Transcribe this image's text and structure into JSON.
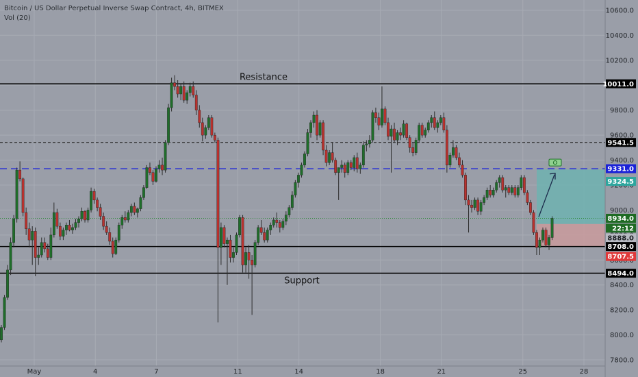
{
  "chart_data": {
    "type": "candlestick",
    "legend": {
      "line1": "Bitcoin / US Dollar Perpetual Inverse Swap Contract, 4h, BITMEX",
      "line2": "Vol (20)"
    },
    "y_range": [
      7750,
      10700
    ],
    "y_ticks": [
      {
        "value": 7800,
        "label": "7800.0"
      },
      {
        "value": 8000,
        "label": "8000.0"
      },
      {
        "value": 8200,
        "label": "8200.0"
      },
      {
        "value": 8400,
        "label": "8400.0"
      },
      {
        "value": 8600,
        "label": "8600.0"
      },
      {
        "value": 8800,
        "label": "8800.0"
      },
      {
        "value": 9000,
        "label": "9000.0"
      },
      {
        "value": 9200,
        "label": "9200.0"
      },
      {
        "value": 9400,
        "label": "9400.0"
      },
      {
        "value": 9600,
        "label": "9600.0"
      },
      {
        "value": 9800,
        "label": "9800.0"
      },
      {
        "value": 10000,
        "label": "10000.0"
      },
      {
        "value": 10200,
        "label": "10200.0"
      },
      {
        "value": 10400,
        "label": "10400.0"
      },
      {
        "value": 10600,
        "label": "10600.0"
      }
    ],
    "x_ticks": [
      {
        "label": "May",
        "day": 1
      },
      {
        "label": "4",
        "day": 4
      },
      {
        "label": "7",
        "day": 7
      },
      {
        "label": "11",
        "day": 11
      },
      {
        "label": "14",
        "day": 14
      },
      {
        "label": "18",
        "day": 18
      },
      {
        "label": "21",
        "day": 21
      },
      {
        "label": "25",
        "day": 25
      },
      {
        "label": "28",
        "day": 28
      }
    ],
    "horizontal_levels": [
      {
        "name": "resistance",
        "value": 10011.0,
        "label": "10011.0",
        "style": "solid",
        "color": "#000000",
        "annotation": "Resistance"
      },
      {
        "name": "level-9541",
        "value": 9541.5,
        "label": "9541.5",
        "style": "dashed",
        "color": "#333333"
      },
      {
        "name": "level-9331",
        "value": 9331.0,
        "label": "9331.0",
        "style": "dashed",
        "color": "#1a22d8"
      },
      {
        "name": "level-8708",
        "value": 8708.0,
        "label": "8708.0",
        "style": "solid",
        "color": "#000000"
      },
      {
        "name": "support",
        "value": 8494.0,
        "label": "8494.0",
        "style": "solid",
        "color": "#000000",
        "annotation": "Support"
      }
    ],
    "position": {
      "entry": 8888.0,
      "target": 9324.5,
      "stop": 8707.5,
      "current": 8934.0,
      "countdown": "22:12",
      "start_day": 25.1,
      "end_day": 26.0,
      "profit_color": "#6fb2b0",
      "loss_color": "#c99a9c"
    },
    "price_badges": [
      {
        "value": 10011.0,
        "label": "10011.0",
        "bg": "#000000",
        "fg": "#ffffff"
      },
      {
        "value": 9541.5,
        "label": "9541.5",
        "bg": "#000000",
        "fg": "#ffffff"
      },
      {
        "value": 9331.0,
        "label": "9331.0",
        "bg": "#1a22d8",
        "fg": "#ffffff"
      },
      {
        "value": 9230.0,
        "label": "9324.5",
        "bg": "#2ea69e",
        "fg": "#ffffff"
      },
      {
        "value": 8934.0,
        "label": "8934.0",
        "bg": "#1f6b24",
        "fg": "#ffffff"
      },
      {
        "value": 8855.0,
        "label": "22:12",
        "bg": "#1f6b24",
        "fg": "#ffffff"
      },
      {
        "value": 8776.0,
        "label": "8888.0",
        "bg": "#b7bac2",
        "fg": "#1f2226"
      },
      {
        "value": 8708.0,
        "label": "8708.0",
        "bg": "#000000",
        "fg": "#ffffff"
      },
      {
        "value": 8628.0,
        "label": "8707.5",
        "bg": "#e0393a",
        "fg": "#ffffff"
      },
      {
        "value": 8494.0,
        "label": "8494.0",
        "bg": "#000000",
        "fg": "#ffffff"
      }
    ],
    "colors": {
      "background": "#9a9ea8",
      "up": "#1f6e2a",
      "down": "#b9322f",
      "wick": "#2c2c2c",
      "dotted_current": "#2e8a3a"
    },
    "candles_ohlc_4h": [
      [
        7960,
        8080,
        7940,
        8060
      ],
      [
        8060,
        8320,
        8040,
        8300
      ],
      [
        8300,
        8560,
        8280,
        8520
      ],
      [
        8520,
        8780,
        8480,
        8740
      ],
      [
        8740,
        8960,
        8700,
        8930
      ],
      [
        8930,
        9340,
        8900,
        9320
      ],
      [
        9320,
        9390,
        9230,
        9250
      ],
      [
        9250,
        9260,
        8950,
        8980
      ],
      [
        8980,
        9020,
        8800,
        8850
      ],
      [
        8850,
        8900,
        8700,
        8760
      ],
      [
        8760,
        8870,
        8560,
        8830
      ],
      [
        8830,
        8860,
        8470,
        8620
      ],
      [
        8620,
        8700,
        8560,
        8640
      ],
      [
        8640,
        8780,
        8620,
        8740
      ],
      [
        8740,
        8780,
        8660,
        8690
      ],
      [
        8690,
        8730,
        8600,
        8620
      ],
      [
        8620,
        8860,
        8600,
        8800
      ],
      [
        8800,
        9060,
        8780,
        8980
      ],
      [
        8980,
        9010,
        8850,
        8870
      ],
      [
        8870,
        8900,
        8760,
        8790
      ],
      [
        8790,
        8860,
        8760,
        8840
      ],
      [
        8840,
        8900,
        8800,
        8880
      ],
      [
        8880,
        8920,
        8830,
        8840
      ],
      [
        8840,
        8890,
        8810,
        8860
      ],
      [
        8860,
        8930,
        8840,
        8900
      ],
      [
        8900,
        8950,
        8860,
        8930
      ],
      [
        8930,
        9020,
        8910,
        8990
      ],
      [
        8990,
        9000,
        8900,
        8920
      ],
      [
        8920,
        9020,
        8900,
        9000
      ],
      [
        9000,
        9180,
        8980,
        9150
      ],
      [
        9150,
        9170,
        9050,
        9080
      ],
      [
        9080,
        9100,
        8990,
        9020
      ],
      [
        9020,
        9050,
        8920,
        8950
      ],
      [
        8950,
        8980,
        8840,
        8870
      ],
      [
        8870,
        8910,
        8800,
        8820
      ],
      [
        8820,
        8860,
        8720,
        8750
      ],
      [
        8750,
        8780,
        8620,
        8650
      ],
      [
        8650,
        8780,
        8640,
        8760
      ],
      [
        8760,
        8900,
        8740,
        8880
      ],
      [
        8880,
        8960,
        8850,
        8940
      ],
      [
        8940,
        8990,
        8900,
        8920
      ],
      [
        8920,
        9000,
        8900,
        8980
      ],
      [
        8980,
        9050,
        8950,
        9030
      ],
      [
        9030,
        9060,
        8960,
        8980
      ],
      [
        8980,
        9020,
        8940,
        9010
      ],
      [
        9010,
        9120,
        8990,
        9100
      ],
      [
        9100,
        9200,
        9080,
        9180
      ],
      [
        9180,
        9360,
        9170,
        9340
      ],
      [
        9340,
        9380,
        9280,
        9300
      ],
      [
        9300,
        9320,
        9200,
        9230
      ],
      [
        9230,
        9350,
        9220,
        9330
      ],
      [
        9330,
        9400,
        9300,
        9360
      ],
      [
        9360,
        9420,
        9280,
        9320
      ],
      [
        9320,
        9560,
        9300,
        9540
      ],
      [
        9540,
        9850,
        9520,
        9820
      ],
      [
        9820,
        10060,
        9790,
        10020
      ],
      [
        10020,
        10080,
        9960,
        9990
      ],
      [
        9990,
        10040,
        9900,
        9930
      ],
      [
        9930,
        10010,
        9880,
        9990
      ],
      [
        9990,
        10030,
        9860,
        9880
      ],
      [
        9880,
        9960,
        9850,
        9940
      ],
      [
        9940,
        10020,
        9910,
        9990
      ],
      [
        9990,
        10030,
        9900,
        9920
      ],
      [
        9920,
        9960,
        9760,
        9800
      ],
      [
        9800,
        9840,
        9660,
        9700
      ],
      [
        9700,
        9740,
        9550,
        9600
      ],
      [
        9600,
        9680,
        9570,
        9660
      ],
      [
        9660,
        9760,
        9640,
        9740
      ],
      [
        9740,
        9760,
        9580,
        9600
      ],
      [
        9600,
        9620,
        9540,
        9560
      ],
      [
        9560,
        9580,
        8100,
        8700
      ],
      [
        8700,
        8900,
        8560,
        8860
      ],
      [
        8860,
        8880,
        8700,
        8730
      ],
      [
        8730,
        8780,
        8400,
        8760
      ],
      [
        8760,
        8800,
        8580,
        8620
      ],
      [
        8620,
        8700,
        8580,
        8660
      ],
      [
        8660,
        8820,
        8640,
        8800
      ],
      [
        8800,
        8960,
        8780,
        8940
      ],
      [
        8940,
        8960,
        8500,
        8560
      ],
      [
        8560,
        8700,
        8500,
        8660
      ],
      [
        8660,
        8720,
        8450,
        8600
      ],
      [
        8600,
        8640,
        8160,
        8560
      ],
      [
        8560,
        8760,
        8540,
        8740
      ],
      [
        8740,
        8880,
        8720,
        8860
      ],
      [
        8860,
        8920,
        8800,
        8820
      ],
      [
        8820,
        8860,
        8740,
        8760
      ],
      [
        8760,
        8860,
        8740,
        8840
      ],
      [
        8840,
        8900,
        8800,
        8880
      ],
      [
        8880,
        8940,
        8860,
        8920
      ],
      [
        8920,
        8980,
        8860,
        8900
      ],
      [
        8900,
        8920,
        8820,
        8860
      ],
      [
        8860,
        8930,
        8840,
        8910
      ],
      [
        8910,
        8990,
        8880,
        8960
      ],
      [
        8960,
        9040,
        8940,
        9020
      ],
      [
        9020,
        9150,
        9000,
        9120
      ],
      [
        9120,
        9240,
        9100,
        9220
      ],
      [
        9220,
        9300,
        9180,
        9280
      ],
      [
        9280,
        9380,
        9260,
        9360
      ],
      [
        9360,
        9470,
        9340,
        9450
      ],
      [
        9450,
        9650,
        9430,
        9620
      ],
      [
        9620,
        9720,
        9580,
        9700
      ],
      [
        9700,
        9790,
        9660,
        9760
      ],
      [
        9760,
        9800,
        9560,
        9600
      ],
      [
        9600,
        9720,
        9580,
        9700
      ],
      [
        9700,
        9720,
        9440,
        9480
      ],
      [
        9480,
        9520,
        9350,
        9380
      ],
      [
        9380,
        9480,
        9360,
        9460
      ],
      [
        9460,
        9540,
        9380,
        9400
      ],
      [
        9400,
        9420,
        9280,
        9300
      ],
      [
        9300,
        9340,
        9080,
        9340
      ],
      [
        9340,
        9400,
        9300,
        9360
      ],
      [
        9360,
        9380,
        9260,
        9300
      ],
      [
        9300,
        9400,
        9280,
        9380
      ],
      [
        9380,
        9400,
        9320,
        9340
      ],
      [
        9340,
        9440,
        9310,
        9420
      ],
      [
        9420,
        9460,
        9300,
        9330
      ],
      [
        9330,
        9380,
        9290,
        9360
      ],
      [
        9360,
        9550,
        9340,
        9520
      ],
      [
        9520,
        9560,
        9470,
        9530
      ],
      [
        9530,
        9600,
        9500,
        9560
      ],
      [
        9560,
        9800,
        9540,
        9780
      ],
      [
        9780,
        9820,
        9700,
        9740
      ],
      [
        9740,
        9780,
        9640,
        9680
      ],
      [
        9680,
        9990,
        9660,
        9810
      ],
      [
        9810,
        9830,
        9680,
        9700
      ],
      [
        9700,
        9740,
        9560,
        9590
      ],
      [
        9590,
        9680,
        9300,
        9650
      ],
      [
        9650,
        9700,
        9540,
        9560
      ],
      [
        9560,
        9640,
        9520,
        9620
      ],
      [
        9620,
        9660,
        9560,
        9600
      ],
      [
        9600,
        9720,
        9580,
        9690
      ],
      [
        9690,
        9700,
        9560,
        9580
      ],
      [
        9580,
        9600,
        9460,
        9500
      ],
      [
        9500,
        9540,
        9430,
        9460
      ],
      [
        9460,
        9580,
        9440,
        9560
      ],
      [
        9560,
        9700,
        9540,
        9680
      ],
      [
        9680,
        9700,
        9580,
        9600
      ],
      [
        9600,
        9660,
        9580,
        9640
      ],
      [
        9640,
        9720,
        9620,
        9700
      ],
      [
        9700,
        9760,
        9660,
        9740
      ],
      [
        9740,
        9790,
        9640,
        9660
      ],
      [
        9660,
        9720,
        9620,
        9700
      ],
      [
        9700,
        9760,
        9680,
        9740
      ],
      [
        9740,
        9780,
        9620,
        9640
      ],
      [
        9640,
        9680,
        9300,
        9360
      ],
      [
        9360,
        9460,
        9340,
        9440
      ],
      [
        9440,
        9560,
        9420,
        9500
      ],
      [
        9500,
        9520,
        9400,
        9420
      ],
      [
        9420,
        9460,
        9340,
        9360
      ],
      [
        9360,
        9400,
        9260,
        9280
      ],
      [
        9280,
        9300,
        9040,
        9080
      ],
      [
        9080,
        9120,
        8820,
        9040
      ],
      [
        9040,
        9080,
        8980,
        9020
      ],
      [
        9020,
        9100,
        9000,
        9080
      ],
      [
        9080,
        9100,
        8960,
        8990
      ],
      [
        8990,
        9080,
        8960,
        9060
      ],
      [
        9060,
        9120,
        9040,
        9100
      ],
      [
        9100,
        9180,
        9080,
        9160
      ],
      [
        9160,
        9200,
        9100,
        9120
      ],
      [
        9120,
        9180,
        9100,
        9160
      ],
      [
        9160,
        9240,
        9140,
        9220
      ],
      [
        9220,
        9280,
        9180,
        9260
      ],
      [
        9260,
        9280,
        9140,
        9160
      ],
      [
        9160,
        9200,
        9100,
        9180
      ],
      [
        9180,
        9200,
        9120,
        9140
      ],
      [
        9140,
        9200,
        9120,
        9180
      ],
      [
        9180,
        9200,
        9100,
        9120
      ],
      [
        9120,
        9200,
        9100,
        9180
      ],
      [
        9180,
        9280,
        9160,
        9260
      ],
      [
        9260,
        9280,
        9120,
        9140
      ],
      [
        9140,
        9160,
        9040,
        9060
      ],
      [
        9060,
        9080,
        8960,
        8980
      ],
      [
        8980,
        9000,
        8800,
        8820
      ],
      [
        8820,
        8840,
        8640,
        8700
      ],
      [
        8700,
        8780,
        8640,
        8760
      ],
      [
        8760,
        8860,
        8740,
        8840
      ],
      [
        8840,
        8860,
        8700,
        8720
      ],
      [
        8720,
        8800,
        8680,
        8780
      ],
      [
        8780,
        8950,
        8760,
        8934
      ]
    ]
  }
}
